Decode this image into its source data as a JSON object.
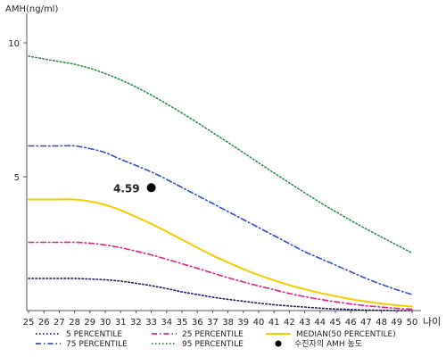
{
  "chart_data": {
    "type": "line",
    "ylabel": "AMH(ng/ml)",
    "xlabel": "나이",
    "xlim": [
      25,
      50
    ],
    "ylim": [
      0,
      11
    ],
    "yticks": [
      5,
      10
    ],
    "x": [
      25,
      26,
      27,
      28,
      29,
      30,
      31,
      32,
      33,
      34,
      35,
      36,
      37,
      38,
      39,
      40,
      41,
      42,
      43,
      44,
      45,
      46,
      47,
      48,
      49,
      50
    ],
    "grid": false,
    "legend_position": "bottom",
    "series": [
      {
        "name": "5 PERCENTILE",
        "color": "#1a1a66",
        "dash": "dotted",
        "values": [
          1.2,
          1.2,
          1.2,
          1.2,
          1.18,
          1.15,
          1.1,
          1.02,
          0.93,
          0.82,
          0.7,
          0.6,
          0.5,
          0.42,
          0.35,
          0.28,
          0.22,
          0.17,
          0.13,
          0.09,
          0.06,
          0.04,
          0.02,
          0.01,
          0.0,
          0.0
        ]
      },
      {
        "name": "75 PERCENTILE",
        "color": "#3050c0",
        "dash": "dashdot",
        "values": [
          6.15,
          6.15,
          6.15,
          6.15,
          6.05,
          5.9,
          5.65,
          5.42,
          5.18,
          4.9,
          4.6,
          4.3,
          4.0,
          3.7,
          3.4,
          3.1,
          2.8,
          2.5,
          2.2,
          1.95,
          1.7,
          1.45,
          1.2,
          0.98,
          0.78,
          0.6
        ]
      },
      {
        "name": "25 PERCENTILE",
        "color": "#e0208a",
        "dash": "dashdot",
        "values": [
          2.55,
          2.55,
          2.55,
          2.55,
          2.52,
          2.45,
          2.35,
          2.22,
          2.08,
          1.92,
          1.75,
          1.58,
          1.4,
          1.23,
          1.07,
          0.92,
          0.78,
          0.64,
          0.52,
          0.42,
          0.33,
          0.25,
          0.18,
          0.13,
          0.08,
          0.05
        ]
      },
      {
        "name": "95 PERCENTILE",
        "color": "#2e8a4a",
        "dash": "dotted",
        "values": [
          9.5,
          9.4,
          9.3,
          9.2,
          9.05,
          8.85,
          8.62,
          8.35,
          8.05,
          7.72,
          7.38,
          7.02,
          6.65,
          6.28,
          5.9,
          5.52,
          5.14,
          4.77,
          4.4,
          4.04,
          3.7,
          3.37,
          3.05,
          2.75,
          2.45,
          2.15
        ]
      },
      {
        "name": "MEDIAN(50 PERCENTILE)",
        "color": "#f2cc00",
        "dash": "solid",
        "values": [
          4.15,
          4.15,
          4.15,
          4.15,
          4.08,
          3.95,
          3.75,
          3.5,
          3.24,
          2.95,
          2.65,
          2.35,
          2.06,
          1.8,
          1.55,
          1.33,
          1.13,
          0.95,
          0.8,
          0.66,
          0.54,
          0.43,
          0.34,
          0.26,
          0.2,
          0.15
        ]
      }
    ],
    "markers": [
      {
        "name": "수진자의 AMH 농도",
        "x": 33,
        "y": 4.59,
        "label": "4.59",
        "color": "#000000"
      }
    ]
  }
}
